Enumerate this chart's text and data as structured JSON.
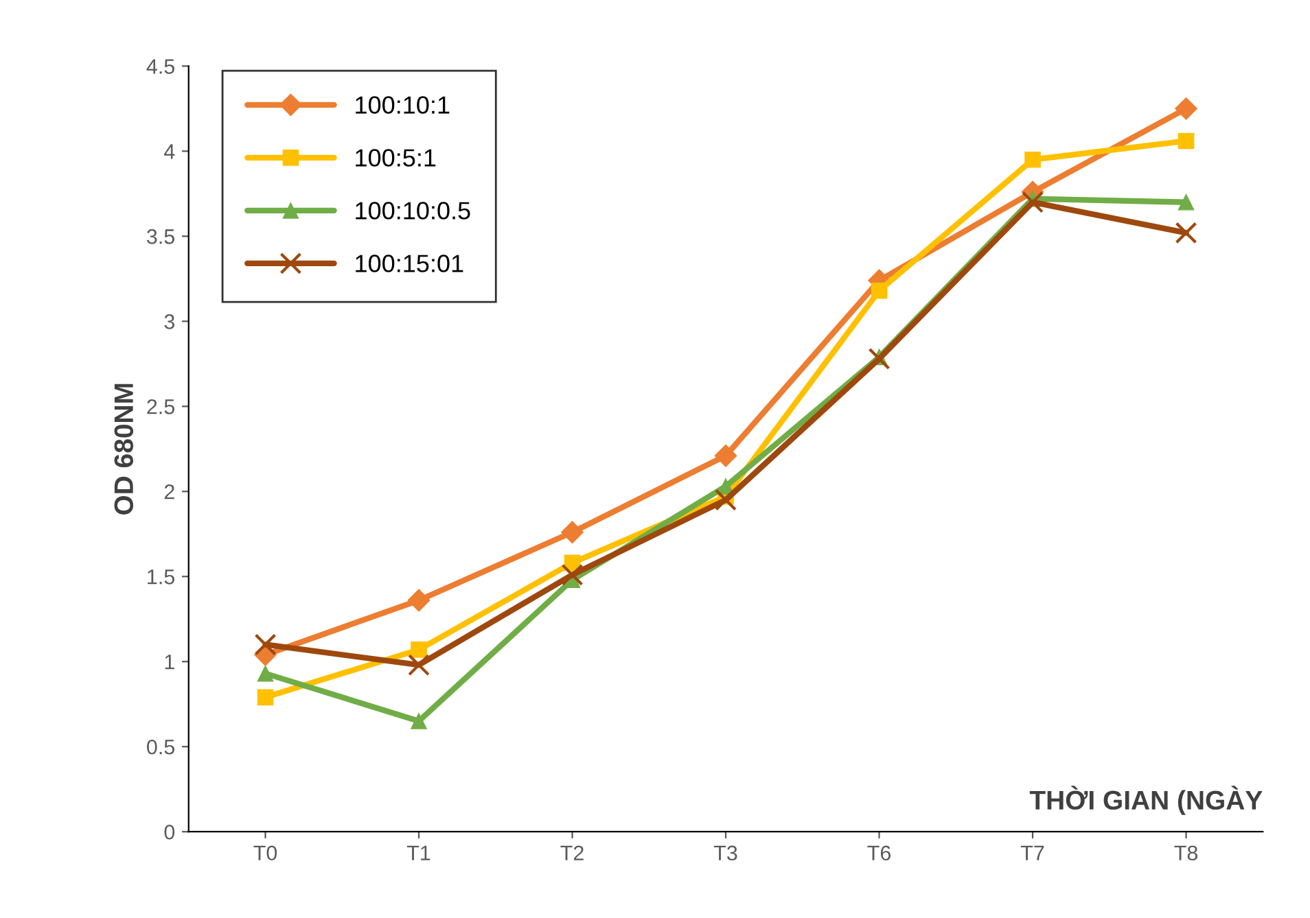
{
  "chart_data": {
    "type": "line",
    "xlabel": "THỜI GIAN (NGÀY",
    "ylabel": "OD 680NM",
    "categories": [
      "T0",
      "T1",
      "T2",
      "T3",
      "T6",
      "T7",
      "T8"
    ],
    "series": [
      {
        "name": "100:10:1",
        "color": "#ed7d31",
        "marker": "diamond",
        "values": [
          1.04,
          1.36,
          1.76,
          2.21,
          3.24,
          3.76,
          4.25
        ]
      },
      {
        "name": "100:5:1",
        "color": "#ffc000",
        "marker": "square",
        "values": [
          0.79,
          1.07,
          1.58,
          1.97,
          3.18,
          3.95,
          4.06
        ]
      },
      {
        "name": "100:10:0.5",
        "color": "#70ad47",
        "marker": "triangle",
        "values": [
          0.93,
          0.65,
          1.48,
          2.03,
          2.79,
          3.72,
          3.7
        ]
      },
      {
        "name": "100:15:01",
        "color": "#9e480e",
        "marker": "cross",
        "values": [
          1.1,
          0.98,
          1.51,
          1.95,
          2.78,
          3.7,
          3.52
        ]
      }
    ],
    "ylim": [
      0,
      4.5
    ],
    "yticks": [
      0,
      0.5,
      1,
      1.5,
      2,
      2.5,
      3,
      3.5,
      4,
      4.5
    ],
    "grid": false,
    "legend": "top left",
    "line_style": "solid"
  }
}
